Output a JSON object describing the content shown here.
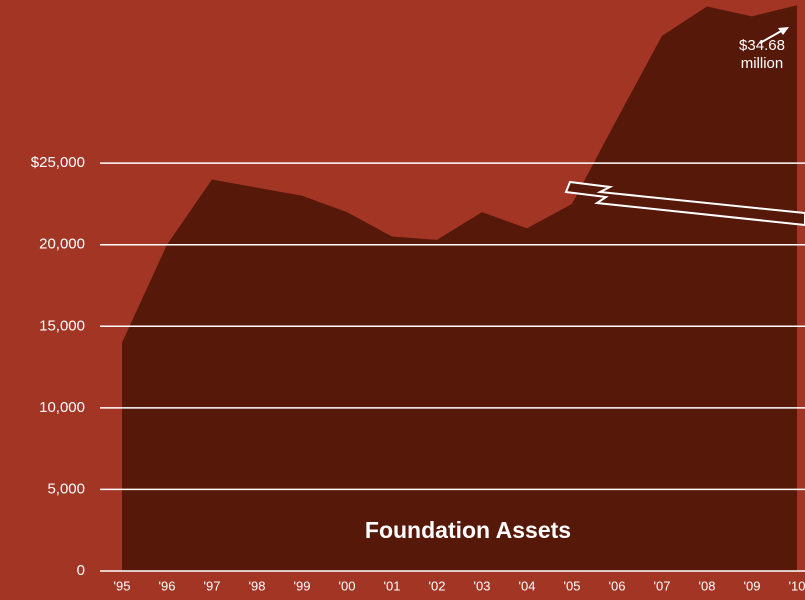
{
  "chart_data": {
    "type": "area",
    "title": "Foundation Assets",
    "annotation": "$34.68 million",
    "categories": [
      "'95",
      "'96",
      "'97",
      "'98",
      "'99",
      "'00",
      "'01",
      "'02",
      "'03",
      "'04",
      "'05",
      "'06",
      "'07",
      "'08",
      "'09",
      "'10"
    ],
    "values": [
      14000,
      20000,
      24000,
      23500,
      23000,
      22000,
      20500,
      20300,
      22000,
      21000,
      22500,
      27700,
      32800,
      34600,
      34000,
      34680
    ],
    "color": "#561808",
    "ylim": [
      0,
      35000
    ],
    "yticks": [
      0,
      {
        "value": 5000,
        "label": "5,000"
      },
      {
        "value": 10000,
        "label": "10,000"
      },
      {
        "value": 15000,
        "label": "15,000"
      },
      {
        "value": 20000,
        "label": "20,000"
      },
      {
        "value": 25000,
        "label": "$25,000"
      }
    ],
    "grid": true
  }
}
